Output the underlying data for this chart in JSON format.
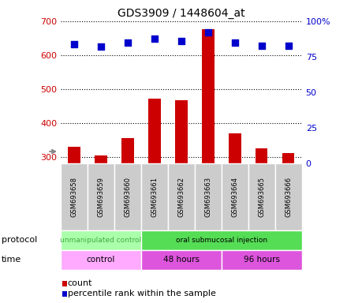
{
  "title": "GDS3909 / 1448604_at",
  "samples": [
    "GSM693658",
    "GSM693659",
    "GSM693660",
    "GSM693661",
    "GSM693662",
    "GSM693663",
    "GSM693664",
    "GSM693665",
    "GSM693666"
  ],
  "count_values": [
    330,
    305,
    355,
    472,
    468,
    676,
    370,
    325,
    312
  ],
  "percentile_values": [
    84,
    82,
    85,
    88,
    86,
    92,
    85,
    83,
    83
  ],
  "ylim_left": [
    280,
    700
  ],
  "ylim_right": [
    0,
    100
  ],
  "yticks_left": [
    300,
    400,
    500,
    600,
    700
  ],
  "yticks_right": [
    0,
    25,
    50,
    75,
    100
  ],
  "count_color": "#cc0000",
  "percentile_color": "#0000cc",
  "bar_width": 0.45,
  "protocol_groups": [
    {
      "label": "unmanipulated control",
      "start": 0,
      "end": 3
    },
    {
      "label": "oral submucosal injection",
      "start": 3,
      "end": 9
    }
  ],
  "protocol_colors": [
    "#aaffaa",
    "#55dd55"
  ],
  "protocol_text_colors": [
    "#44aa44",
    "#000000"
  ],
  "time_groups": [
    {
      "label": "control",
      "start": 0,
      "end": 3
    },
    {
      "label": "48 hours",
      "start": 3,
      "end": 6
    },
    {
      "label": "96 hours",
      "start": 6,
      "end": 9
    }
  ],
  "time_colors": [
    "#ffaaff",
    "#dd55dd",
    "#dd55dd"
  ],
  "legend_count_label": "count",
  "legend_pct_label": "percentile rank within the sample",
  "left_axis_color": "#cc0000",
  "right_axis_color": "#0000cc",
  "bg_color": "#ffffff",
  "sample_box_color": "#cccccc",
  "sample_box_edge": "#999999",
  "label_arrow_color": "#888888"
}
